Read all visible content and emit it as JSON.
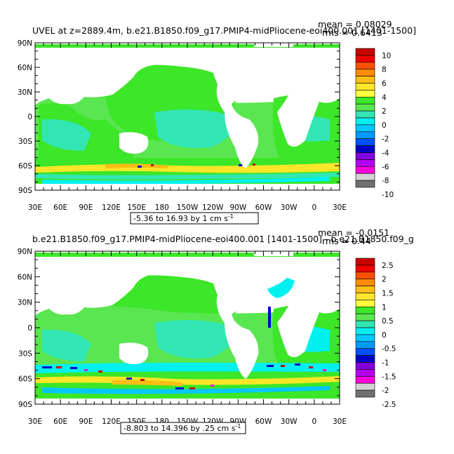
{
  "panels": [
    {
      "title": "UVEL at z=2889.4m, b.e21.B1850.f09_g17.PMIP4-midPliocene-eoi400.001 [1401-1500]",
      "mean_text": "mean = 0.08029",
      "rms_text": "rms = 0.6413",
      "range_text": "-5.36 to 16.93 by 1 cm s",
      "units_sup": "-1",
      "colorbar": {
        "labels": [
          "10",
          "8",
          "6",
          "4",
          "2",
          "0",
          "-2",
          "-4",
          "-6",
          "-8",
          "-10"
        ],
        "colors": [
          "#c80000",
          "#f00000",
          "#ff5000",
          "#ff8c00",
          "#ffbe14",
          "#ffe628",
          "#ffff3c",
          "#3ce628",
          "#5ae650",
          "#32e6b4",
          "#00f0f0",
          "#00c8ff",
          "#009aff",
          "#0050ff",
          "#0000c8",
          "#8200dc",
          "#b400f0",
          "#ff00dc",
          "#d2d2d2",
          "#707070"
        ]
      }
    },
    {
      "title": "b.e21.B1850.f09_g17.PMIP4-midPliocene-eoi400.001 [1401-1500] - b.e21.B1850.f09_g",
      "mean_text": "mean = -0.0151",
      "rms_text": "rms = 0.44",
      "range_text": "-8.803 to 14.396 by .25 cm s",
      "units_sup": "-1",
      "colorbar": {
        "labels": [
          "2.5",
          "2",
          "1.5",
          "1",
          "0.5",
          "0",
          "-0.5",
          "-1",
          "-1.5",
          "-2",
          "-2.5"
        ],
        "colors": [
          "#c80000",
          "#f00000",
          "#ff5000",
          "#ff8c00",
          "#ffbe14",
          "#ffe628",
          "#ffff3c",
          "#3ce628",
          "#5ae650",
          "#32e6b4",
          "#00f0f0",
          "#00c8ff",
          "#009aff",
          "#0050ff",
          "#0000c8",
          "#8200dc",
          "#b400f0",
          "#ff00dc",
          "#d2d2d2",
          "#707070"
        ]
      }
    }
  ],
  "axes": {
    "x_labels": [
      "30E",
      "60E",
      "90E",
      "120E",
      "150E",
      "180",
      "150W",
      "120W",
      "90W",
      "60W",
      "30W",
      "0",
      "30E"
    ],
    "y_labels": [
      "90N",
      "60N",
      "30N",
      "0",
      "30S",
      "60S",
      "90S"
    ]
  },
  "colors": {
    "field_green": "#3ce628",
    "field_cyan": "#00f0f0",
    "field_yellow": "#ffe628",
    "land": "#ffffff"
  }
}
